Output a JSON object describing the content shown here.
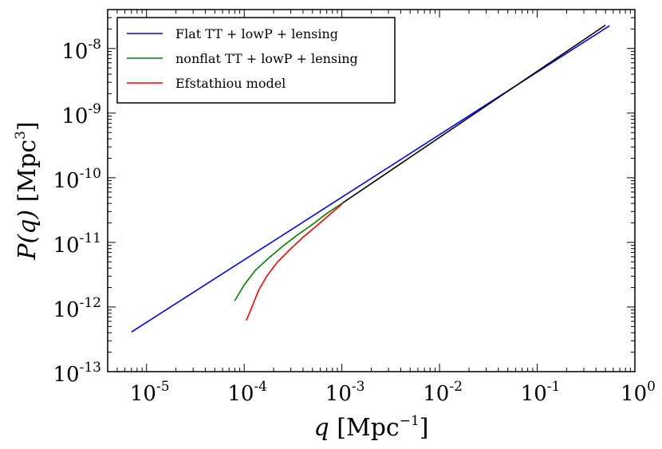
{
  "chart_data": {
    "type": "line",
    "xscale": "log",
    "yscale": "log",
    "xlim": [
      4e-06,
      1.0
    ],
    "ylim": [
      1e-13,
      4e-08
    ],
    "xlabel": {
      "main": "q ",
      "unit": "[Mpc",
      "exp": "−1",
      "close": "]"
    },
    "ylabel": {
      "main": "P(q) ",
      "unit": "[Mpc",
      "exp": "3",
      "close": "]"
    },
    "x_ticks": [
      {
        "value": 1e-05,
        "base": "10",
        "exp": "-5"
      },
      {
        "value": 0.0001,
        "base": "10",
        "exp": "-4"
      },
      {
        "value": 0.001,
        "base": "10",
        "exp": "-3"
      },
      {
        "value": 0.01,
        "base": "10",
        "exp": "-2"
      },
      {
        "value": 0.1,
        "base": "10",
        "exp": "-1"
      },
      {
        "value": 1.0,
        "base": "10",
        "exp": "0"
      }
    ],
    "y_ticks": [
      {
        "value": 1e-13,
        "base": "10",
        "exp": "-13"
      },
      {
        "value": 1e-12,
        "base": "10",
        "exp": "-12"
      },
      {
        "value": 1e-11,
        "base": "10",
        "exp": "-11"
      },
      {
        "value": 1e-10,
        "base": "10",
        "exp": "-10"
      },
      {
        "value": 1e-09,
        "base": "10",
        "exp": "-9"
      },
      {
        "value": 1e-08,
        "base": "10",
        "exp": "-8"
      }
    ],
    "grid": false,
    "legend_position": "top-left",
    "series": [
      {
        "name": "Flat TT + lowP + lensing",
        "color": "#0000ff",
        "x": [
          7e-06,
          0.55
        ],
        "y": [
          4.1e-13,
          2.25e-08
        ]
      },
      {
        "name": "nonflat TT + lowP + lensing",
        "color": "#008000",
        "x": [
          8e-05,
          0.0001,
          0.00013,
          0.00018,
          0.00025,
          0.00035,
          0.0005,
          0.0007,
          0.001
        ],
        "y": [
          1.25e-12,
          2.2e-12,
          3.7e-12,
          5.8e-12,
          8.8e-12,
          1.3e-11,
          1.9e-11,
          2.8e-11,
          4e-11
        ]
      },
      {
        "name": "Efstathiou model",
        "color": "#ff0000",
        "x": [
          0.000105,
          0.00012,
          0.00014,
          0.00017,
          0.00022,
          0.0003,
          0.0004,
          0.00055,
          0.00075,
          0.001
        ],
        "y": [
          6.2e-13,
          1e-12,
          1.8e-12,
          3e-12,
          5e-12,
          8e-12,
          1.2e-11,
          1.8e-11,
          2.7e-11,
          3.9e-11
        ]
      },
      {
        "name": "",
        "color": "#000000",
        "x": [
          0.001,
          0.5
        ],
        "y": [
          4e-11,
          2.3e-08
        ]
      }
    ]
  }
}
